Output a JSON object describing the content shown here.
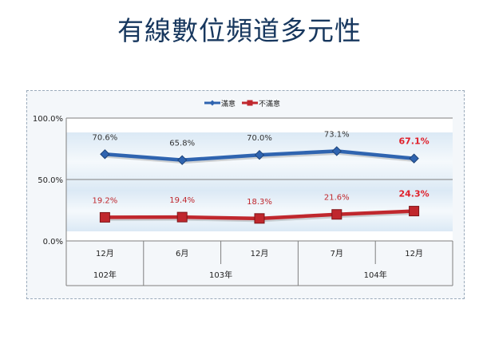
{
  "page": {
    "title": "有線數位頻道多元性"
  },
  "chart_data": {
    "type": "line",
    "categories": [
      "12月",
      "6月",
      "12月",
      "7月",
      "12月"
    ],
    "groups": [
      {
        "label": "102年",
        "span": 1
      },
      {
        "label": "103年",
        "span": 2
      },
      {
        "label": "104年",
        "span": 2
      }
    ],
    "series": [
      {
        "name": "滿意",
        "values": [
          70.6,
          65.8,
          70.0,
          73.1,
          67.1
        ],
        "labels": [
          "70.6%",
          "65.8%",
          "70.0%",
          "73.1%",
          "67.1%"
        ],
        "color": "#2f64b0",
        "label_color": "#333333"
      },
      {
        "name": "不滿意",
        "values": [
          19.2,
          19.4,
          18.3,
          21.6,
          24.3
        ],
        "labels": [
          "19.2%",
          "19.4%",
          "18.3%",
          "21.6%",
          "24.3%"
        ],
        "color": "#c0272d",
        "label_color": "#c0272d"
      }
    ],
    "highlight_index": 4,
    "highlight_color": "#e0202a",
    "ylim": [
      0,
      100
    ],
    "yticks": [
      0,
      50,
      100
    ],
    "ytick_labels": [
      "0.0%",
      "50.0%",
      "100.0%"
    ],
    "legend_position": "top",
    "xlabel": "",
    "ylabel": ""
  }
}
